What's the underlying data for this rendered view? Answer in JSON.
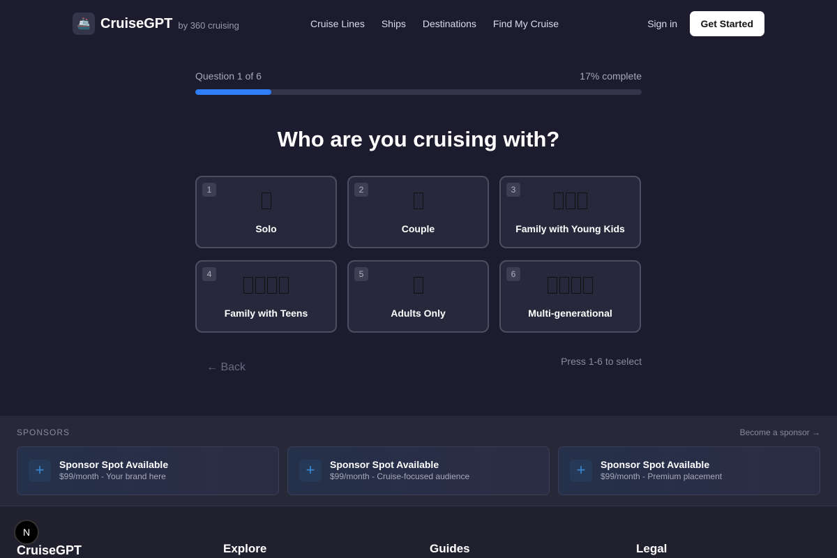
{
  "nav": {
    "brand": "CruiseGPT",
    "by": "by 360 cruising",
    "links": [
      "Cruise Lines",
      "Ships",
      "Destinations",
      "Find My Cruise"
    ],
    "sign_in": "Sign in",
    "get_started": "Get Started"
  },
  "progress": {
    "question": "Question 1 of 6",
    "complete": "17% complete",
    "percent": 17,
    "color": "#2f7ef5"
  },
  "question": "Who are you cruising with?",
  "options": [
    {
      "num": "1",
      "label": "Solo",
      "emoji_count": 1
    },
    {
      "num": "2",
      "label": "Couple",
      "emoji_count": 1
    },
    {
      "num": "3",
      "label": "Family with Young Kids",
      "emoji_count": 3
    },
    {
      "num": "4",
      "label": "Family with Teens",
      "emoji_count": 4
    },
    {
      "num": "5",
      "label": "Adults Only",
      "emoji_count": 1
    },
    {
      "num": "6",
      "label": "Multi-generational",
      "emoji_count": 4
    }
  ],
  "back": "← Back",
  "hint": "Press 1-6 to select",
  "sponsors": {
    "title": "SPONSORS",
    "link": "Become a sponsor →",
    "cards": [
      {
        "title": "Sponsor Spot Available",
        "sub": "$99/month - Your brand here"
      },
      {
        "title": "Sponsor Spot Available",
        "sub": "$99/month - Cruise-focused audience"
      },
      {
        "title": "Sponsor Spot Available",
        "sub": "$99/month - Premium placement"
      }
    ]
  },
  "footer": {
    "brand": "CruiseGPT",
    "cols": [
      "Explore",
      "Guides",
      "Legal"
    ],
    "badge": "N"
  }
}
